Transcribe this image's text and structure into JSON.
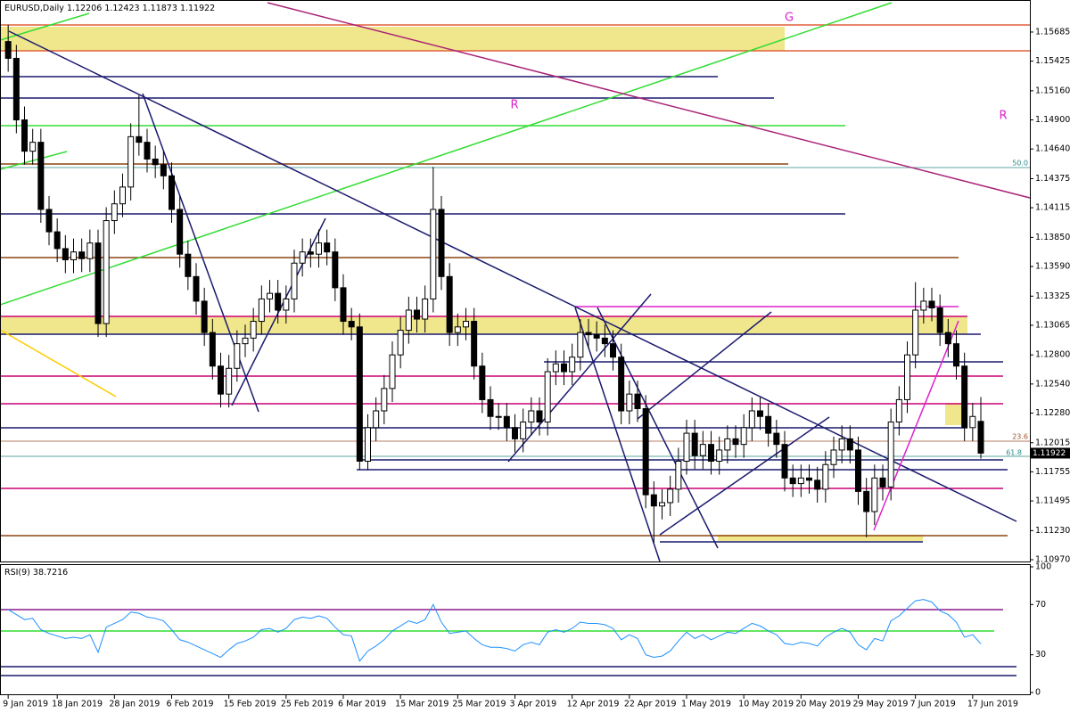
{
  "chart_data": [
    {
      "type": "candlestick",
      "title": "EURUSD,Daily",
      "open": [
        1.156,
        1.1545,
        1.149,
        1.1462,
        1.147,
        1.141,
        1.139,
        1.1375,
        1.1365,
        1.1372,
        1.1366,
        1.138,
        1.1308,
        1.14,
        1.1415,
        1.143,
        1.1475,
        1.147,
        1.1455,
        1.145,
        1.144,
        1.141,
        1.137,
        1.135,
        1.1328,
        1.13,
        1.127,
        1.1245,
        1.1268,
        1.129,
        1.1295,
        1.131,
        1.133,
        1.1335,
        1.132,
        1.133,
        1.1362,
        1.1372,
        1.137,
        1.138,
        1.1372,
        1.134,
        1.131,
        1.1305,
        1.1185,
        1.1215,
        1.123,
        1.125,
        1.128,
        1.1302,
        1.132,
        1.1312,
        1.133,
        1.141,
        1.135,
        1.13,
        1.1305,
        1.131,
        1.127,
        1.124,
        1.1225,
        1.1225,
        1.1215,
        1.1205,
        1.122,
        1.123,
        1.122,
        1.1265,
        1.1272,
        1.1265,
        1.1278,
        1.13,
        1.1298,
        1.1295,
        1.129,
        1.1278,
        1.123,
        1.1245,
        1.1232,
        1.1155,
        1.1145,
        1.1148,
        1.116,
        1.1185,
        1.121,
        1.119,
        1.12,
        1.1185,
        1.1195,
        1.1205,
        1.12,
        1.1215,
        1.123,
        1.1225,
        1.121,
        1.12,
        1.117,
        1.1165,
        1.117,
        1.1168,
        1.116,
        1.1182,
        1.1195,
        1.1205,
        1.1195,
        1.1158,
        1.114,
        1.117,
        1.1162,
        1.122,
        1.124,
        1.128,
        1.132,
        1.1328,
        1.1322,
        1.13,
        1.129,
        1.127,
        1.1215,
        1.12206
      ],
      "high": [
        1.1575,
        1.1557,
        1.1502,
        1.1482,
        1.1482,
        1.1422,
        1.1402,
        1.1387,
        1.1384,
        1.1384,
        1.1392,
        1.1392,
        1.1412,
        1.1427,
        1.1442,
        1.1487,
        1.1512,
        1.1482,
        1.1467,
        1.1462,
        1.1452,
        1.1422,
        1.1382,
        1.1362,
        1.134,
        1.1312,
        1.1282,
        1.128,
        1.1302,
        1.1307,
        1.1322,
        1.1342,
        1.1347,
        1.1347,
        1.1342,
        1.1374,
        1.1384,
        1.1384,
        1.1392,
        1.1392,
        1.1384,
        1.1352,
        1.1322,
        1.1317,
        1.1227,
        1.1242,
        1.1262,
        1.1292,
        1.1314,
        1.1332,
        1.1332,
        1.1342,
        1.1448,
        1.1422,
        1.1362,
        1.1317,
        1.1322,
        1.1322,
        1.1282,
        1.1252,
        1.1237,
        1.1237,
        1.1227,
        1.1232,
        1.1242,
        1.1242,
        1.1277,
        1.1284,
        1.1284,
        1.129,
        1.1312,
        1.1312,
        1.131,
        1.1307,
        1.1302,
        1.129,
        1.1257,
        1.1257,
        1.1244,
        1.1167,
        1.116,
        1.1172,
        1.1197,
        1.1222,
        1.1222,
        1.1212,
        1.1212,
        1.1207,
        1.1217,
        1.1217,
        1.1227,
        1.1242,
        1.1242,
        1.1237,
        1.1222,
        1.1212,
        1.1182,
        1.1182,
        1.1182,
        1.118,
        1.1194,
        1.1207,
        1.1217,
        1.1217,
        1.1207,
        1.117,
        1.1182,
        1.1182,
        1.1232,
        1.1252,
        1.1292,
        1.1345,
        1.134,
        1.134,
        1.1334,
        1.1312,
        1.1302,
        1.1282,
        1.1237,
        1.12423
      ],
      "low": [
        1.1533,
        1.1478,
        1.145,
        1.145,
        1.1398,
        1.1378,
        1.1363,
        1.1353,
        1.1353,
        1.1354,
        1.1354,
        1.1296,
        1.1296,
        1.1388,
        1.1403,
        1.1418,
        1.1458,
        1.1443,
        1.1438,
        1.1428,
        1.1398,
        1.1358,
        1.1338,
        1.1316,
        1.1288,
        1.1258,
        1.1233,
        1.1233,
        1.1256,
        1.1278,
        1.1283,
        1.1298,
        1.1318,
        1.1308,
        1.1308,
        1.1318,
        1.135,
        1.1358,
        1.1358,
        1.136,
        1.1328,
        1.1298,
        1.1293,
        1.1177,
        1.1177,
        1.1203,
        1.1218,
        1.1238,
        1.1268,
        1.129,
        1.13,
        1.13,
        1.1318,
        1.1338,
        1.1288,
        1.1288,
        1.1293,
        1.1258,
        1.1228,
        1.1213,
        1.1213,
        1.1203,
        1.1193,
        1.1193,
        1.1208,
        1.1208,
        1.1208,
        1.1253,
        1.1253,
        1.1253,
        1.1266,
        1.1286,
        1.1283,
        1.1278,
        1.1266,
        1.1218,
        1.1218,
        1.122,
        1.1143,
        1.1112,
        1.1133,
        1.1136,
        1.1148,
        1.1173,
        1.1178,
        1.1178,
        1.1173,
        1.1173,
        1.1183,
        1.1188,
        1.1188,
        1.1203,
        1.1213,
        1.1198,
        1.1188,
        1.1158,
        1.1153,
        1.1153,
        1.1156,
        1.1148,
        1.1148,
        1.117,
        1.1183,
        1.1183,
        1.1146,
        1.1117,
        1.1128,
        1.115,
        1.115,
        1.1208,
        1.1228,
        1.1268,
        1.1308,
        1.131,
        1.1288,
        1.1278,
        1.1258,
        1.1203,
        1.1203,
        1.11873
      ],
      "close": [
        1.1545,
        1.149,
        1.1462,
        1.147,
        1.141,
        1.139,
        1.1375,
        1.1365,
        1.1372,
        1.1366,
        1.138,
        1.1308,
        1.14,
        1.1415,
        1.143,
        1.1475,
        1.147,
        1.1455,
        1.145,
        1.144,
        1.141,
        1.137,
        1.135,
        1.1328,
        1.13,
        1.127,
        1.1245,
        1.1268,
        1.129,
        1.1295,
        1.131,
        1.133,
        1.1335,
        1.132,
        1.133,
        1.1362,
        1.1372,
        1.137,
        1.138,
        1.1372,
        1.134,
        1.131,
        1.1305,
        1.1185,
        1.1215,
        1.123,
        1.125,
        1.128,
        1.1302,
        1.132,
        1.1312,
        1.133,
        1.141,
        1.135,
        1.13,
        1.1305,
        1.131,
        1.127,
        1.124,
        1.1225,
        1.1225,
        1.1215,
        1.1205,
        1.122,
        1.123,
        1.122,
        1.1265,
        1.1272,
        1.1265,
        1.1278,
        1.13,
        1.1298,
        1.1295,
        1.129,
        1.1278,
        1.123,
        1.1245,
        1.1232,
        1.1155,
        1.1145,
        1.1148,
        1.116,
        1.1185,
        1.121,
        1.119,
        1.12,
        1.1185,
        1.1195,
        1.1205,
        1.12,
        1.1215,
        1.123,
        1.1225,
        1.121,
        1.12,
        1.117,
        1.1165,
        1.117,
        1.1168,
        1.116,
        1.1182,
        1.1195,
        1.1205,
        1.1195,
        1.1158,
        1.114,
        1.117,
        1.1162,
        1.122,
        1.124,
        1.128,
        1.132,
        1.1328,
        1.1322,
        1.13,
        1.129,
        1.127,
        1.1215,
        1.1225,
        1.11922
      ],
      "colors": {
        "up": "#ffffff",
        "down": "#000000",
        "outline": "#000000"
      },
      "xlim": [
        -1,
        125
      ],
      "xticks": [
        {
          "value": 0,
          "label": "9 Jan 2019"
        },
        {
          "value": 6,
          "label": "18 Jan 2019"
        },
        {
          "value": 13,
          "label": "28 Jan 2019"
        },
        {
          "value": 20,
          "label": "6 Feb 2019"
        },
        {
          "value": 27,
          "label": "15 Feb 2019"
        },
        {
          "value": 34,
          "label": "25 Feb 2019"
        },
        {
          "value": 41,
          "label": "6 Mar 2019"
        },
        {
          "value": 48,
          "label": "15 Mar 2019"
        },
        {
          "value": 55,
          "label": "25 Mar 2019"
        },
        {
          "value": 62,
          "label": "3 Apr 2019"
        },
        {
          "value": 69,
          "label": "12 Apr 2019"
        },
        {
          "value": 76,
          "label": "22 Apr 2019"
        },
        {
          "value": 83,
          "label": "1 May 2019"
        },
        {
          "value": 90,
          "label": "10 May 2019"
        },
        {
          "value": 97,
          "label": "20 May 2019"
        },
        {
          "value": 104,
          "label": "29 May 2019"
        },
        {
          "value": 111,
          "label": "7 Jun 2019"
        },
        {
          "value": 118,
          "label": "17 Jun 2019"
        }
      ],
      "ylim": [
        1.10954,
        1.15812
      ],
      "yticks": [
        1.15685,
        1.15425,
        {
          "value": 1.1516,
          "label": "1.15160"
        },
        {
          "value": 1.149,
          "label": "1.14900"
        },
        {
          "value": 1.1464,
          "label": "1.14640"
        },
        1.14375,
        1.14115,
        {
          "value": 1.1385,
          "label": "1.13850"
        },
        {
          "value": 1.1359,
          "label": "1.13590"
        },
        1.13325,
        1.13065,
        {
          "value": 1.128,
          "label": "1.12800"
        },
        {
          "value": 1.1254,
          "label": "1.12540"
        },
        {
          "value": 1.1228,
          "label": "1.12280"
        },
        1.12015,
        1.11755,
        1.11495,
        {
          "value": 1.1123,
          "label": "1.11230"
        },
        {
          "value": 1.1097,
          "label": "1.10970"
        }
      ],
      "annotations": [
        "G",
        "R",
        "R",
        "50.0",
        "23.6",
        "61.8"
      ]
    },
    {
      "type": "line",
      "series": [
        {
          "name": "RSI(9)",
          "color": "#1e90ff",
          "values": [
            66,
            62,
            58,
            59,
            50,
            47,
            45,
            43,
            44,
            43,
            46,
            32,
            52,
            55,
            58,
            64,
            63,
            60,
            59,
            57,
            50,
            42,
            40,
            37,
            34,
            31,
            28,
            34,
            39,
            41,
            44,
            50,
            51,
            48,
            51,
            58,
            60,
            59,
            61,
            59,
            52,
            46,
            45,
            25,
            33,
            37,
            42,
            49,
            53,
            57,
            55,
            58,
            70,
            56,
            47,
            48,
            49,
            43,
            38,
            36,
            36,
            35,
            33,
            38,
            40,
            38,
            48,
            50,
            48,
            51,
            56,
            55,
            55,
            54,
            51,
            42,
            46,
            43,
            30,
            28,
            29,
            33,
            41,
            48,
            43,
            46,
            42,
            45,
            48,
            47,
            51,
            55,
            53,
            49,
            46,
            39,
            38,
            40,
            39,
            37,
            44,
            48,
            51,
            48,
            38,
            34,
            43,
            41,
            57,
            61,
            67,
            73,
            74,
            72,
            65,
            62,
            56,
            44,
            46,
            38.7216
          ]
        }
      ],
      "xlim": [
        -1,
        125
      ],
      "ylim": [
        0,
        100
      ],
      "yticks": [
        100,
        70,
        30,
        0
      ]
    }
  ]
}
